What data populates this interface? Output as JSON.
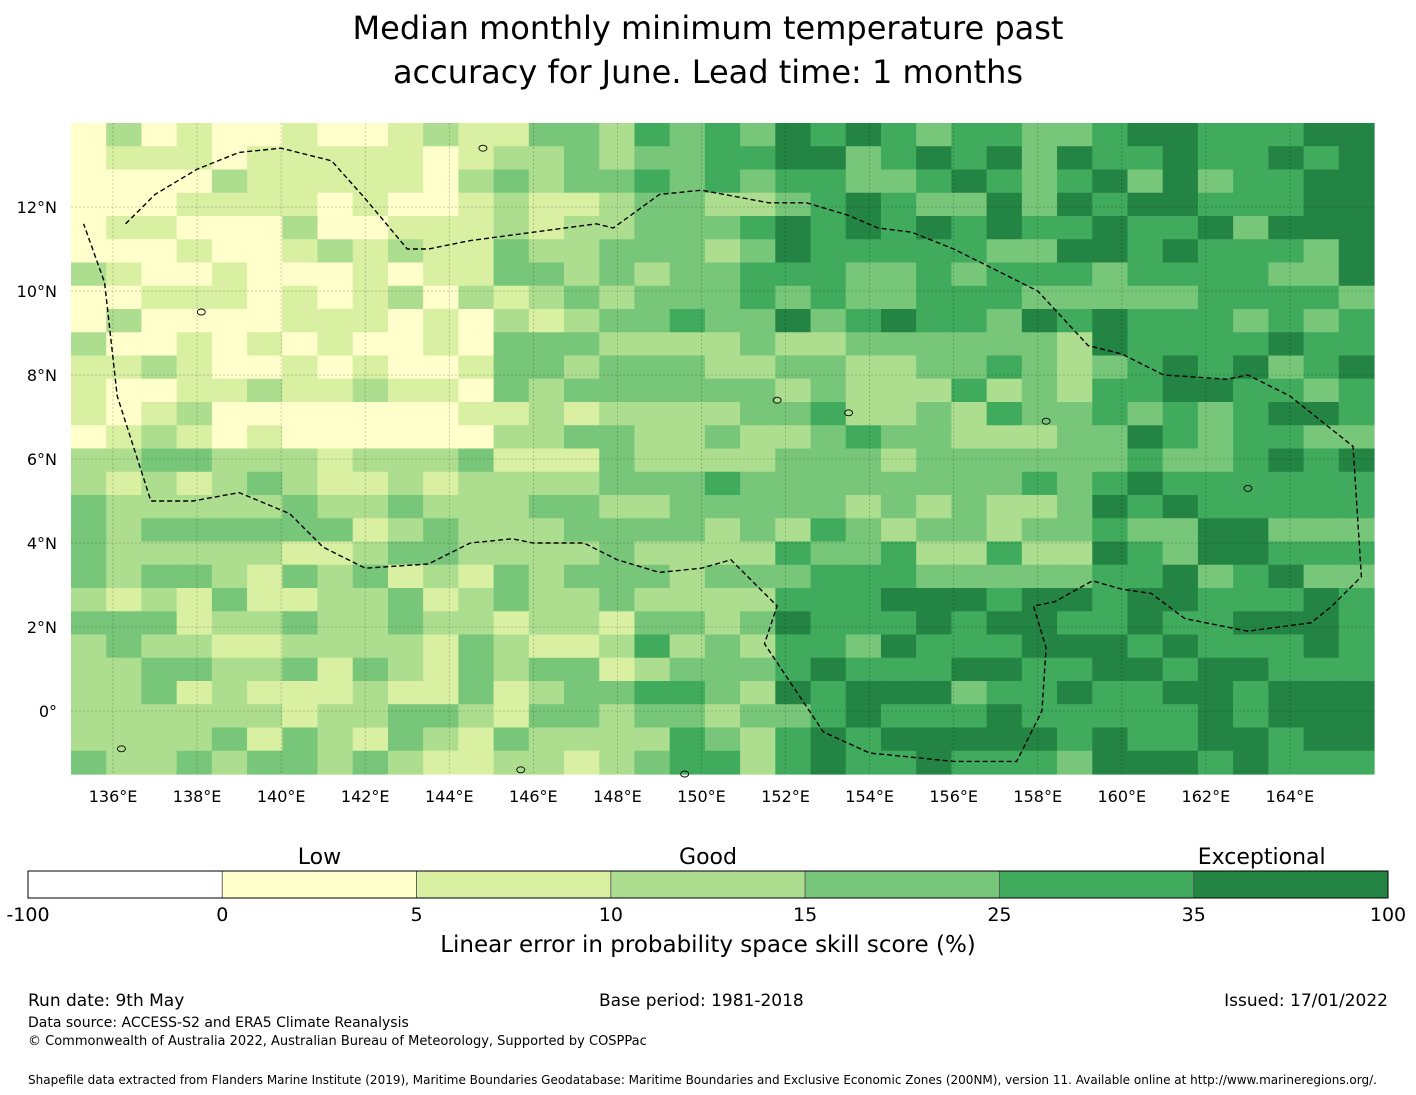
{
  "title": {
    "line1": "Median monthly minimum temperature past",
    "line2": "accuracy for June. Lead time: 1 months"
  },
  "map": {
    "lon_range": [
      135,
      166
    ],
    "lat_range": [
      -1.5,
      14
    ],
    "lon_ticks": [
      "136°E",
      "138°E",
      "140°E",
      "142°E",
      "144°E",
      "146°E",
      "148°E",
      "150°E",
      "152°E",
      "154°E",
      "156°E",
      "158°E",
      "160°E",
      "162°E",
      "164°E"
    ],
    "lat_ticks": [
      "12°N",
      "10°N",
      "8°N",
      "6°N",
      "4°N",
      "2°N",
      "0°"
    ],
    "grid": true,
    "boundary_style": "dashed"
  },
  "legend": {
    "category_labels": [
      "Low",
      "Good",
      "Exceptional"
    ],
    "tick_labels": [
      "-100",
      "0",
      "5",
      "10",
      "15",
      "25",
      "35",
      "100"
    ],
    "colors": [
      "#ffffff",
      "#ffffcc",
      "#d9f0a3",
      "#addd8e",
      "#78c679",
      "#41ab5d",
      "#238443"
    ],
    "axis_label": "Linear error in probability space skill score (%)"
  },
  "footer": {
    "run_date": "Run date: 9th May",
    "base_period": "Base period: 1981-2018",
    "issued": "Issued: 17/01/2022",
    "data_source": "Data source: ACCESS-S2 and ERA5 Climate Reanalysis",
    "copyright": "© Commonwealth of Australia 2022, Australian Bureau of Meteorology, Supported by COSPPac",
    "shapefile": "Shapefile data extracted from Flanders Marine Institute (2019), Maritime Boundaries Geodatabase: Maritime Boundaries and Exclusive Economic Zones (200NM), version 11. Available online at http://www.marineregions.org/."
  }
}
